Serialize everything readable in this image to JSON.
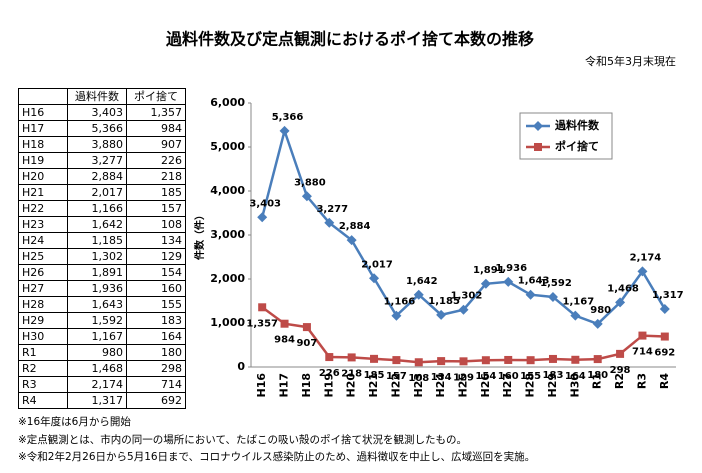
{
  "title": "過料件数及び定点観測におけるポイ捨て本数の推移",
  "as_of": "令和5年3月末現在",
  "table": {
    "header": [
      "",
      "過料件数",
      "ポイ捨て"
    ],
    "rows": [
      [
        "H16",
        "3,403",
        "1,357"
      ],
      [
        "H17",
        "5,366",
        "984"
      ],
      [
        "H18",
        "3,880",
        "907"
      ],
      [
        "H19",
        "3,277",
        "226"
      ],
      [
        "H20",
        "2,884",
        "218"
      ],
      [
        "H21",
        "2,017",
        "185"
      ],
      [
        "H22",
        "1,166",
        "157"
      ],
      [
        "H23",
        "1,642",
        "108"
      ],
      [
        "H24",
        "1,185",
        "134"
      ],
      [
        "H25",
        "1,302",
        "129"
      ],
      [
        "H26",
        "1,891",
        "154"
      ],
      [
        "H27",
        "1,936",
        "160"
      ],
      [
        "H28",
        "1,643",
        "155"
      ],
      [
        "H29",
        "1,592",
        "183"
      ],
      [
        "H30",
        "1,167",
        "164"
      ],
      [
        "R1",
        "980",
        "180"
      ],
      [
        "R2",
        "1,468",
        "298"
      ],
      [
        "R3",
        "2,174",
        "714"
      ],
      [
        "R4",
        "1,317",
        "692"
      ]
    ]
  },
  "notes": [
    "※16年度は6月から開始",
    "※定点観測とは、市内の同一の場所において、たばこの吸い殻のポイ捨て状況を観測したもの。",
    "※令和2年2月26日から5月16日まで、コロナウイルス感染防止のため、過料徴収を中止し、広域巡回を実施。"
  ],
  "chart_data": {
    "type": "line",
    "y_label": "件数（件）",
    "categories": [
      "H16",
      "H17",
      "H18",
      "H19",
      "H20",
      "H21",
      "H22",
      "H23",
      "H24",
      "H25",
      "H26",
      "H27",
      "H28",
      "H29",
      "H30",
      "R1",
      "R2",
      "R3",
      "R4"
    ],
    "series": [
      {
        "name": "過料件数",
        "color": "#4a7ebb",
        "marker": "diamond",
        "values": [
          3403,
          5366,
          3880,
          3277,
          2884,
          2017,
          1166,
          1642,
          1185,
          1302,
          1891,
          1936,
          1643,
          1592,
          1167,
          980,
          1468,
          2174,
          1317
        ],
        "value_labels": [
          "3,403",
          "5,366",
          "3,880",
          "3,277",
          "2,884",
          "2,017",
          "1,166",
          "1,642",
          "1,185",
          "1,302",
          "1,891",
          "1,936",
          "1,643",
          "1,592",
          "1,167",
          "980",
          "1,468",
          "2,174",
          "1,317"
        ]
      },
      {
        "name": "ポイ捨て",
        "color": "#be4b48",
        "marker": "square",
        "values": [
          1357,
          984,
          907,
          226,
          218,
          185,
          157,
          108,
          134,
          129,
          154,
          160,
          155,
          183,
          164,
          180,
          298,
          714,
          692
        ],
        "value_labels": [
          "1,357",
          "984",
          "907",
          "226",
          "218",
          "185",
          "157",
          "108",
          "134",
          "129",
          "154",
          "160",
          "155",
          "183",
          "164",
          "180",
          "298",
          "714",
          "692"
        ]
      }
    ],
    "ylim": [
      0,
      6000
    ],
    "yticks": [
      0,
      {
        "value": 1000,
        "label": "1,000"
      },
      {
        "value": 2000,
        "label": "2,000"
      },
      {
        "value": 3000,
        "label": "3,000"
      },
      {
        "value": 4000,
        "label": "4,000"
      },
      {
        "value": 5000,
        "label": "5,000"
      },
      {
        "value": 6000,
        "label": "6,000"
      }
    ],
    "legend": "top-right"
  }
}
